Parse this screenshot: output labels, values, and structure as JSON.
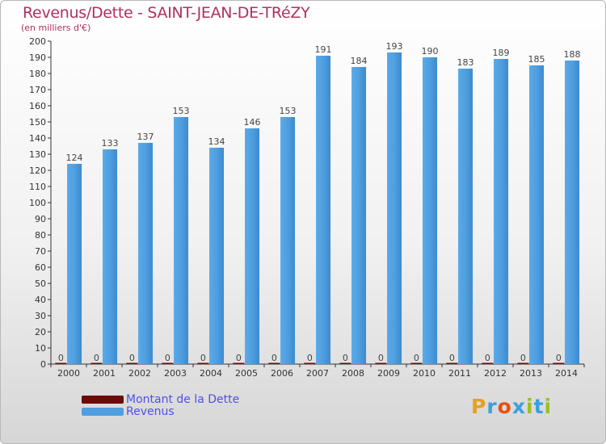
{
  "header": {
    "title": "Revenus/Dette - SAINT-JEAN-DE-TRéZY",
    "subtitle": "(en milliers d'€)"
  },
  "chart_data": {
    "type": "bar",
    "categories": [
      "2000",
      "2001",
      "2002",
      "2003",
      "2004",
      "2005",
      "2006",
      "2007",
      "2008",
      "2009",
      "2010",
      "2011",
      "2012",
      "2013",
      "2014"
    ],
    "series": [
      {
        "name": "Montant de la Dette",
        "color": "#6b0a0a",
        "values": [
          0,
          0,
          0,
          0,
          0,
          0,
          0,
          0,
          0,
          0,
          0,
          0,
          0,
          0,
          0
        ]
      },
      {
        "name": "Revenus",
        "color": "#4f9fe0",
        "values": [
          124,
          133,
          137,
          153,
          134,
          146,
          153,
          191,
          184,
          193,
          190,
          183,
          189,
          185,
          188
        ]
      }
    ],
    "ylim": [
      0,
      200
    ],
    "ytick_step": 10,
    "grid": false,
    "legend_position": "bottom-left"
  },
  "legend": {
    "items": [
      {
        "label": "Montant de la Dette",
        "color": "#6b0a0a"
      },
      {
        "label": "Revenus",
        "color": "#4f9fe0"
      }
    ]
  },
  "logo": {
    "letters": [
      "P",
      "r",
      "o",
      "x",
      "i",
      "t",
      "i"
    ],
    "colors": [
      "#e8a020",
      "#3aa0e0",
      "#e85010",
      "#3aa0e0",
      "#9ac020",
      "#3aa0e0",
      "#9ac020"
    ]
  }
}
